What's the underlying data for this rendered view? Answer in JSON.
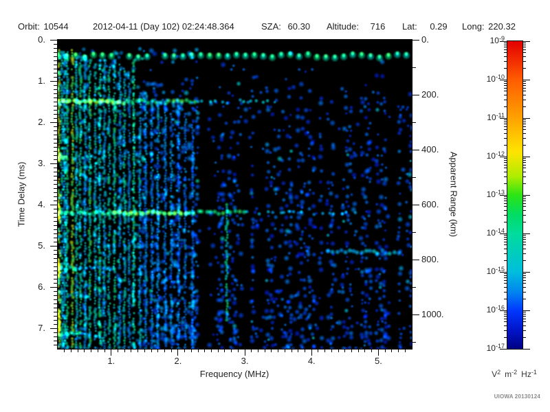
{
  "header": {
    "items": [
      {
        "label": "Orbit:",
        "value": "10544"
      },
      {
        "label": "",
        "value": "2012-04-11 (Day 102) 02:24:48.364"
      },
      {
        "label": "SZA:",
        "value": "60.30"
      },
      {
        "label": "Altitude:",
        "value": "716"
      },
      {
        "label": "Lat:",
        "value": "0.29"
      },
      {
        "label": "Long:",
        "value": "220.32"
      }
    ]
  },
  "watermark": "UIOWA 20130124",
  "chart_data": {
    "type": "heatmap",
    "subtype": "radar-ionogram-spectrogram",
    "title": "",
    "xlabel": "Frequency (MHz)",
    "ylabel": "Time Delay (ms)",
    "y2label": "Apparent Range (km)",
    "xlim": [
      0.2,
      5.5
    ],
    "ylim": [
      0,
      7.5
    ],
    "y2lim_km": [
      0,
      1125
    ],
    "apparent_range_km_per_ms": 150,
    "xticks": [
      1,
      2,
      3,
      4,
      5
    ],
    "xtick_labels": [
      "1.",
      "2.",
      "3.",
      "4.",
      "5."
    ],
    "x_minor_step": 0.1,
    "yticks": [
      0,
      1,
      2,
      3,
      4,
      5,
      6,
      7
    ],
    "ytick_labels": [
      "0.",
      "1.",
      "2.",
      "3.",
      "4.",
      "5.",
      "6.",
      "7."
    ],
    "y_minor_step": 0.1,
    "y2ticks": [
      0,
      200,
      400,
      600,
      800,
      1000
    ],
    "y2tick_labels": [
      "0.",
      "200.",
      "400.",
      "600.",
      "800.",
      "1000."
    ],
    "y2_minor_step": 100,
    "grid": false,
    "background": "#000000",
    "colorbar": {
      "scale": "log",
      "max_label_exp": "-9",
      "min_label_exp": "-17",
      "exponent_labels": [
        "-9",
        "-10",
        "-11",
        "-12",
        "-13",
        "-14",
        "-15",
        "-16",
        "-17"
      ],
      "base": "10",
      "units": {
        "u1": "V",
        "e1": "2",
        "u2": "m",
        "e2": "-2",
        "u3": "Hz",
        "e3": "-1"
      },
      "gradient_stops": [
        [
          0.0,
          "#e30000"
        ],
        [
          0.07,
          "#f33200"
        ],
        [
          0.125,
          "#ff5c00"
        ],
        [
          0.25,
          "#ffa200"
        ],
        [
          0.36,
          "#ffe400"
        ],
        [
          0.44,
          "#aeec00"
        ],
        [
          0.5,
          "#2ce414"
        ],
        [
          0.565,
          "#00dc64"
        ],
        [
          0.625,
          "#00dc9c"
        ],
        [
          0.75,
          "#00bedd"
        ],
        [
          0.82,
          "#0080f0"
        ],
        [
          0.875,
          "#0038ff"
        ],
        [
          0.94,
          "#0014c8"
        ],
        [
          1.0,
          "#000082"
        ]
      ]
    },
    "features": {
      "surface_echo_chain": {
        "td": 0.4,
        "f0": 0.2,
        "f1": 5.5,
        "t": 0.58
      },
      "dotted_row": {
        "td": 0.72,
        "f0": 2.6,
        "f1": 4.6,
        "t": 0.34
      },
      "stripes": [
        {
          "f": 0.22,
          "td0": 0.25,
          "td1": 7.5,
          "t": 0.8
        },
        {
          "f": 0.26,
          "td0": 0.3,
          "td1": 7.5,
          "t": 0.5
        },
        {
          "f": 0.3,
          "td0": 0.3,
          "td1": 7.5,
          "t": 0.45
        },
        {
          "f": 0.34,
          "td0": 0.3,
          "td1": 7.5,
          "t": 0.55
        },
        {
          "f": 0.42,
          "td0": 0.25,
          "td1": 7.5,
          "t": 0.75
        },
        {
          "f": 0.48,
          "td0": 0.4,
          "td1": 7.5,
          "t": 0.5
        },
        {
          "f": 0.54,
          "td0": 0.5,
          "td1": 7.5,
          "t": 0.58
        },
        {
          "f": 0.61,
          "td0": 0.4,
          "td1": 7.5,
          "t": 0.45
        },
        {
          "f": 0.68,
          "td0": 0.5,
          "td1": 7.5,
          "t": 0.6
        },
        {
          "f": 0.76,
          "td0": 0.6,
          "td1": 7.5,
          "t": 0.5
        },
        {
          "f": 0.83,
          "td0": 0.5,
          "td1": 7.5,
          "t": 0.55
        },
        {
          "f": 0.9,
          "td0": 0.5,
          "td1": 7.5,
          "t": 0.45
        },
        {
          "f": 0.97,
          "td0": 0.6,
          "td1": 7.5,
          "t": 0.52
        },
        {
          "f": 1.05,
          "td0": 0.5,
          "td1": 7.5,
          "t": 0.55
        },
        {
          "f": 1.13,
          "td0": 0.6,
          "td1": 7.5,
          "t": 0.42
        },
        {
          "f": 1.2,
          "td0": 0.7,
          "td1": 7.5,
          "t": 0.5
        },
        {
          "f": 1.27,
          "td0": 0.8,
          "td1": 7.5,
          "t": 0.42
        },
        {
          "f": 1.34,
          "td0": 0.5,
          "td1": 7.5,
          "t": 0.58
        },
        {
          "f": 1.43,
          "td0": 1.3,
          "td1": 7.5,
          "t": 0.45
        },
        {
          "f": 1.52,
          "td0": 1.3,
          "td1": 7.5,
          "t": 0.4
        },
        {
          "f": 1.61,
          "td0": 1.5,
          "td1": 7.5,
          "t": 0.38
        },
        {
          "f": 1.7,
          "td0": 1.6,
          "td1": 7.5,
          "t": 0.4
        },
        {
          "f": 1.81,
          "td0": 1.5,
          "td1": 7.5,
          "t": 0.35
        },
        {
          "f": 1.9,
          "td0": 1.8,
          "td1": 7.5,
          "t": 0.37
        },
        {
          "f": 2.01,
          "td0": 1.6,
          "td1": 7.5,
          "t": 0.33
        },
        {
          "f": 2.11,
          "td0": 1.8,
          "td1": 7.5,
          "t": 0.36
        },
        {
          "f": 2.22,
          "td0": 2.0,
          "td1": 7.5,
          "t": 0.32
        },
        {
          "f": 2.73,
          "td0": 4.0,
          "td1": 6.8,
          "t": 0.55
        }
      ],
      "bright_segments": [
        [
          2.7,
          3.0
        ],
        [
          4.0,
          4.4
        ],
        [
          5.35,
          5.75
        ],
        [
          6.55,
          7.15
        ]
      ],
      "bands": [
        {
          "td": 1.5,
          "f0": 0.2,
          "f_strong": 2.25,
          "f1": 3.35,
          "t": 0.68,
          "knots": [
            0.2,
            1.15,
            0.78
          ]
        },
        {
          "td": 2.85,
          "f0": 0.2,
          "f_strong": 0.38,
          "f1": 0.9,
          "t": 0.72
        },
        {
          "td": 4.2,
          "f0": 0.2,
          "f_strong": 3.0,
          "f1": 4.65,
          "t": 0.64,
          "knots": [
            1.05,
            2.2,
            0.74
          ]
        },
        {
          "td": 5.15,
          "f0": 4.25,
          "f_strong": 5.3,
          "f1": 5.35,
          "t": 0.46
        },
        {
          "td": 5.55,
          "f0": 0.2,
          "f_strong": 0.45,
          "f1": 1.05,
          "t": 0.6
        },
        {
          "td": 7.15,
          "f0": 0.2,
          "f_strong": 0.55,
          "f1": 0.8,
          "t": 0.6
        }
      ],
      "dark_lanes": [
        {
          "f0": 2.31,
          "f1": 2.55
        },
        {
          "f0": 5.1,
          "f1": 5.32
        }
      ],
      "speckle": {
        "td_quiet_below": 0.25,
        "bottom_dense_from": 6.9,
        "regions": [
          {
            "f0": 0.2,
            "f1": 1.43,
            "p": 0.3,
            "t": [
              0.3,
              0.55
            ]
          },
          {
            "f0": 1.43,
            "f1": 2.31,
            "p": 0.5,
            "t": [
              0.2,
              0.45
            ]
          },
          {
            "f0": 2.31,
            "f1": 2.55,
            "p": 0.07,
            "t": [
              0.18,
              0.3
            ]
          },
          {
            "f0": 2.55,
            "f1": 5.1,
            "p": 0.38,
            "t": [
              0.16,
              0.38
            ]
          },
          {
            "f0": 5.1,
            "f1": 5.32,
            "p": 0.1,
            "t": [
              0.16,
              0.3
            ]
          },
          {
            "f0": 5.32,
            "f1": 5.5,
            "p": 0.42,
            "t": [
              0.18,
              0.35
            ]
          }
        ]
      }
    }
  }
}
